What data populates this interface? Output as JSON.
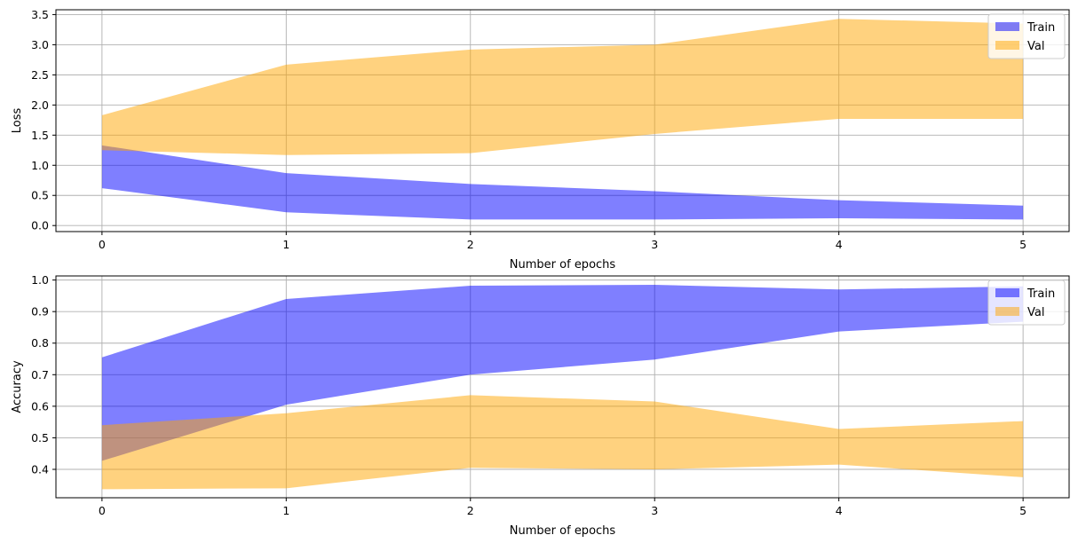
{
  "chart_data": [
    {
      "type": "area",
      "name": "loss-panel",
      "title": "",
      "xlabel": "Number of epochs",
      "ylabel": "Loss",
      "x": [
        0,
        1,
        2,
        3,
        4,
        5
      ],
      "xlim": [
        -0.25,
        5.25
      ],
      "ylim": [
        -0.1,
        3.58
      ],
      "xticks": [
        0,
        1,
        2,
        3,
        4,
        5
      ],
      "yticks": [
        0.0,
        0.5,
        1.0,
        1.5,
        2.0,
        2.5,
        3.0,
        3.5
      ],
      "ytick_labels": [
        "0.0",
        "0.5",
        "1.0",
        "1.5",
        "2.0",
        "2.5",
        "3.0",
        "3.5"
      ],
      "grid": true,
      "legend_position": "upper right",
      "series": [
        {
          "name": "Train",
          "color": "#0000ff",
          "alpha": 0.5,
          "lower": [
            0.62,
            0.22,
            0.1,
            0.1,
            0.12,
            0.1
          ],
          "upper": [
            1.33,
            0.87,
            0.69,
            0.57,
            0.42,
            0.33
          ]
        },
        {
          "name": "Val",
          "color": "#ffa500",
          "alpha": 0.5,
          "lower": [
            1.25,
            1.17,
            1.2,
            1.52,
            1.77,
            1.77
          ],
          "upper": [
            1.83,
            2.67,
            2.92,
            3.0,
            3.43,
            3.35
          ]
        }
      ]
    },
    {
      "type": "area",
      "name": "accuracy-panel",
      "title": "",
      "xlabel": "Number of epochs",
      "ylabel": "Accuracy",
      "x": [
        0,
        1,
        2,
        3,
        4,
        5
      ],
      "xlim": [
        -0.25,
        5.25
      ],
      "ylim": [
        0.31,
        1.013
      ],
      "xticks": [
        0,
        1,
        2,
        3,
        4,
        5
      ],
      "yticks": [
        0.4,
        0.5,
        0.6,
        0.7,
        0.8,
        0.9,
        1.0
      ],
      "ytick_labels": [
        "0.4",
        "0.5",
        "0.6",
        "0.7",
        "0.8",
        "0.9",
        "1.0"
      ],
      "grid": true,
      "legend_position": "upper right",
      "series": [
        {
          "name": "Train",
          "color": "#0000ff",
          "alpha": 0.5,
          "lower": [
            0.427,
            0.605,
            0.7,
            0.748,
            0.837,
            0.868
          ],
          "upper": [
            0.755,
            0.94,
            0.982,
            0.985,
            0.97,
            0.98
          ]
        },
        {
          "name": "Val",
          "color": "#ffa500",
          "alpha": 0.5,
          "lower": [
            0.337,
            0.34,
            0.405,
            0.4,
            0.415,
            0.375
          ],
          "upper": [
            0.54,
            0.578,
            0.635,
            0.615,
            0.528,
            0.553
          ]
        }
      ]
    }
  ]
}
